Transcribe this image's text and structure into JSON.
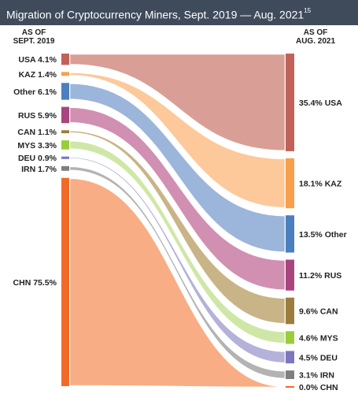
{
  "title": "Migration of Cryptocurrency Miners, Sept. 2019 — Aug. 2021",
  "title_footnote": "15",
  "left_header": [
    "AS OF",
    "SEPT. 2019"
  ],
  "right_header": [
    "AS OF",
    "AUG. 2021"
  ],
  "chart_data": {
    "type": "sankey",
    "title": "Migration of Cryptocurrency Miners, Sept. 2019 — Aug. 2021",
    "unit": "%",
    "left_order": [
      "USA",
      "KAZ",
      "Other",
      "RUS",
      "CAN",
      "MYS",
      "DEU",
      "IRN",
      "CHN"
    ],
    "right_order": [
      "USA",
      "KAZ",
      "Other",
      "RUS",
      "CAN",
      "MYS",
      "DEU",
      "IRN",
      "CHN"
    ],
    "nodes": [
      {
        "code": "USA",
        "sept_2019": 4.1,
        "aug_2021": 35.4,
        "left_label": "USA  4.1%",
        "right_label": "35.4%  USA",
        "color": "#c0625a",
        "flow_color": "#d99e96"
      },
      {
        "code": "KAZ",
        "sept_2019": 1.4,
        "aug_2021": 18.1,
        "left_label": "KAZ  1.4%",
        "right_label": "18.1%  KAZ",
        "color": "#f6a04d",
        "flow_color": "#fdc99a"
      },
      {
        "code": "Other",
        "sept_2019": 6.1,
        "aug_2021": 13.5,
        "left_label": "Other  6.1%",
        "right_label": "13.5%  Other",
        "color": "#4b7fbd",
        "flow_color": "#9cb5da"
      },
      {
        "code": "RUS",
        "sept_2019": 5.9,
        "aug_2021": 11.2,
        "left_label": "RUS  5.9%",
        "right_label": "11.2%  RUS",
        "color": "#a8457f",
        "flow_color": "#d18fb1"
      },
      {
        "code": "CAN",
        "sept_2019": 1.1,
        "aug_2021": 9.6,
        "left_label": "CAN  1.1%",
        "right_label": "9.6%  CAN",
        "color": "#9d7d3d",
        "flow_color": "#c9b487"
      },
      {
        "code": "MYS",
        "sept_2019": 3.3,
        "aug_2021": 4.6,
        "left_label": "MYS  3.3%",
        "right_label": "4.6%  MYS",
        "color": "#9acd3c",
        "flow_color": "#cfe7a6"
      },
      {
        "code": "DEU",
        "sept_2019": 0.9,
        "aug_2021": 4.5,
        "left_label": "DEU  0.9%",
        "right_label": "4.5%  DEU",
        "color": "#7b78be",
        "flow_color": "#b4b1da"
      },
      {
        "code": "IRN",
        "sept_2019": 1.7,
        "aug_2021": 3.1,
        "left_label": "IRN  1.7%",
        "right_label": "3.1%  IRN",
        "color": "#7f7f7f",
        "flow_color": "#b3b3b3"
      },
      {
        "code": "CHN",
        "sept_2019": 75.5,
        "aug_2021": 0.0,
        "left_label": "CHN 75.5%",
        "right_label": "0.0%  CHN",
        "color": "#f26a28",
        "flow_color": "#f8ad85"
      }
    ]
  }
}
